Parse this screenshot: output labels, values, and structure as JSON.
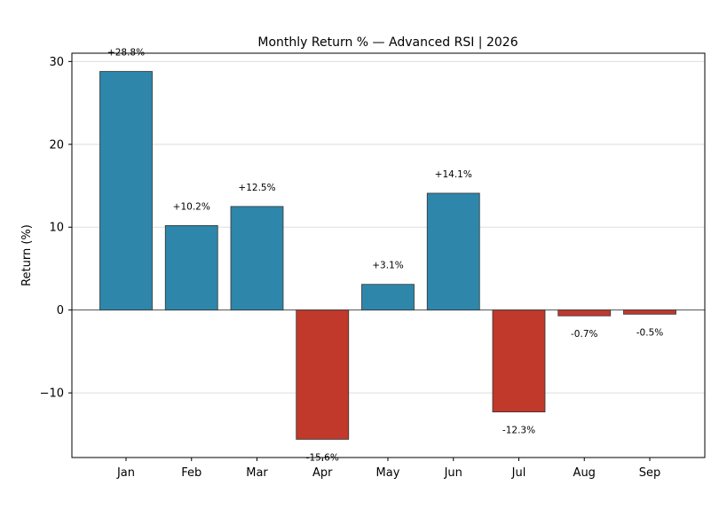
{
  "chart_data": {
    "type": "bar",
    "title": "Monthly Return % — Advanced RSI | 2026",
    "xlabel": "",
    "ylabel": "Return (%)",
    "categories": [
      "Jan",
      "Feb",
      "Mar",
      "Apr",
      "May",
      "Jun",
      "Jul",
      "Aug",
      "Sep"
    ],
    "values": [
      28.8,
      10.2,
      12.5,
      -15.6,
      3.1,
      14.1,
      -12.3,
      -0.7,
      -0.5
    ],
    "data_labels": [
      "+28.8%",
      "+10.2%",
      "+12.5%",
      "-15.6%",
      "+3.1%",
      "+14.1%",
      "-12.3%",
      "-0.7%",
      "-0.5%"
    ],
    "ylim": [
      -17.8,
      31.0
    ],
    "yticks": [
      -10,
      0,
      10,
      20,
      30
    ],
    "ytick_labels": [
      "−10",
      "0",
      "10",
      "20",
      "30"
    ],
    "grid": "horizontal",
    "legend": "none",
    "colors": {
      "positive": "#2e86ab",
      "negative": "#c0392b",
      "edge": "#333333",
      "grid": "#dddddd",
      "zero_line": "#555555"
    }
  }
}
